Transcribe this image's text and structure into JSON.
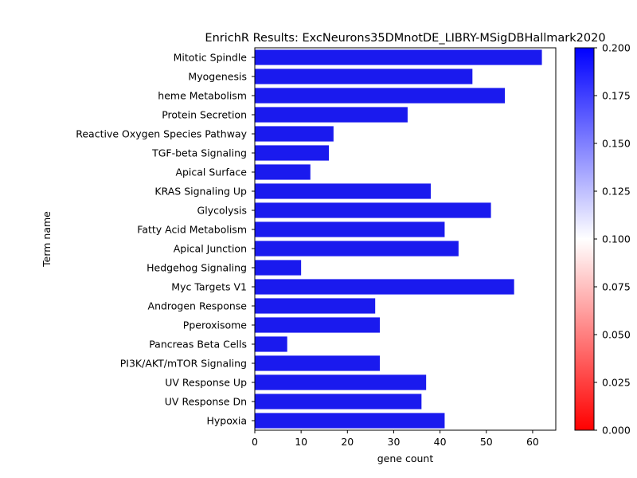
{
  "chart_data": {
    "type": "bar",
    "orientation": "horizontal",
    "title": "EnrichR Results: ExcNeurons35DMnotDE_LIBRY-MSigDBHallmark2020",
    "xlabel": "gene count",
    "ylabel": "Term name",
    "xlim": [
      0,
      65
    ],
    "x_ticks": [
      "0",
      "10",
      "20",
      "30",
      "40",
      "50",
      "60"
    ],
    "categories": [
      "Mitotic Spindle",
      "Myogenesis",
      "heme Metabolism",
      "Protein Secretion",
      "Reactive Oxygen Species Pathway",
      "TGF-beta Signaling",
      "Apical Surface",
      "KRAS Signaling Up",
      "Glycolysis",
      "Fatty Acid Metabolism",
      "Apical Junction",
      "Hedgehog Signaling",
      "Myc Targets V1",
      "Androgen Response",
      "Pperoxisome",
      "Pancreas Beta Cells",
      "PI3K/AKT/mTOR  Signaling",
      "UV Response Up",
      "UV Response Dn",
      "Hypoxia"
    ],
    "values": [
      62,
      47,
      54,
      33,
      17,
      16,
      12,
      38,
      51,
      41,
      44,
      10,
      56,
      26,
      27,
      7,
      27,
      37,
      36,
      41
    ],
    "bar_color": "#1a1aee",
    "grid": false,
    "colorbar": {
      "min": 0.0,
      "max": 0.2,
      "ticks": [
        "0.000",
        "0.025",
        "0.050",
        "0.075",
        "0.100",
        "0.125",
        "0.150",
        "0.175",
        "0.200"
      ],
      "colors": [
        "#ff0000",
        "#ffffff",
        "#0000ff"
      ],
      "placement": "right"
    }
  }
}
